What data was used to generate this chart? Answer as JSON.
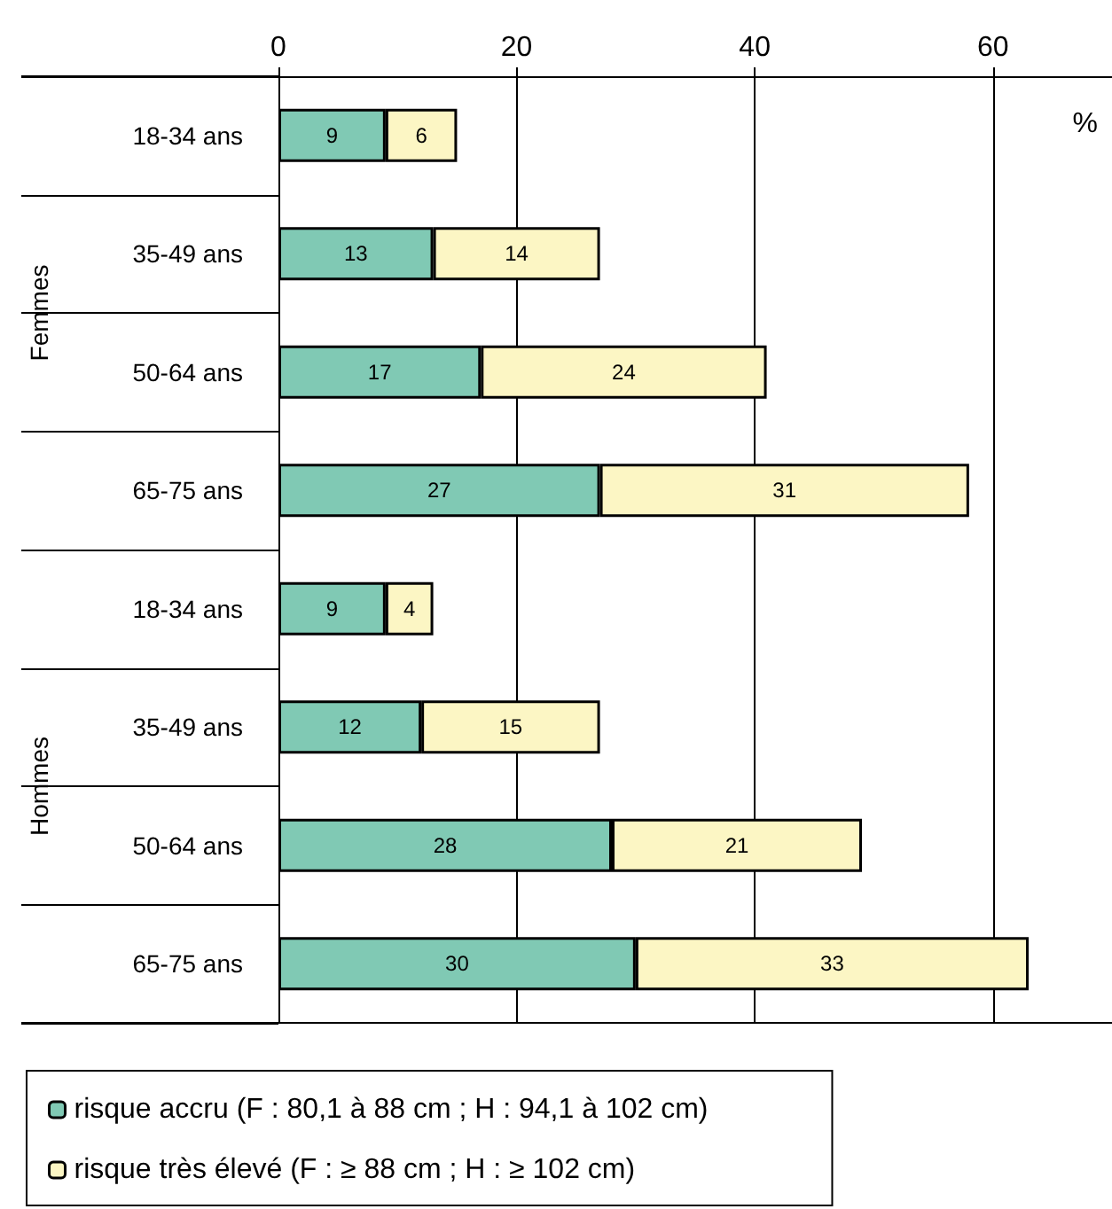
{
  "chart_data": {
    "type": "bar",
    "orientation": "horizontal",
    "stacked": true,
    "xlabel": "%",
    "categories": [
      "18-34 ans",
      "35-49 ans",
      "50-64 ans",
      "65-75 ans",
      "18-34 ans",
      "35-49 ans",
      "50-64 ans",
      "65-75 ans"
    ],
    "annotations": [
      "Femmes",
      "Hommes"
    ],
    "series": [
      {
        "name": "risque accru (F : 80,1 à 88 cm ; H : 94,1 à 102 cm)",
        "color": "#80c9b4",
        "values": [
          9,
          13,
          17,
          27,
          9,
          12,
          28,
          30
        ]
      },
      {
        "name": "risque très élevé (F : ≥ 88 cm ; H : ≥ 102 cm)",
        "color": "#fcf6c4",
        "values": [
          6,
          14,
          24,
          31,
          4,
          15,
          21,
          33
        ]
      }
    ],
    "xlim": [
      0,
      70
    ],
    "xticks": [
      0,
      20,
      40,
      60
    ],
    "grid": "x",
    "legend": "bottom",
    "data_labels": true
  }
}
